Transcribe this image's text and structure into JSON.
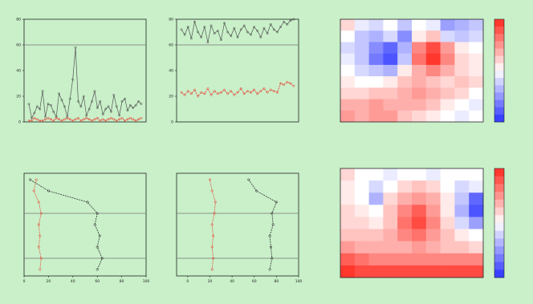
{
  "chart_data": [
    {
      "type": "line",
      "title": "",
      "xlabel": "",
      "ylabel": "",
      "ylim": [
        0,
        80
      ],
      "yticks": [
        0,
        20,
        40,
        60,
        80
      ],
      "hline": 60,
      "x_tick_labels": [],
      "legend_position": "right",
      "series": [
        {
          "name": "",
          "color": "#555555",
          "values": [
            14,
            3,
            7,
            12,
            10,
            24,
            4,
            14,
            13,
            8,
            4,
            22,
            17,
            12,
            4,
            18,
            33,
            58,
            16,
            12,
            20,
            5,
            10,
            16,
            24,
            11,
            16,
            6,
            10,
            12,
            8,
            21,
            12,
            5,
            16,
            18,
            9,
            13,
            11,
            13,
            16,
            14
          ]
        },
        {
          "name": "",
          "color": "#e84a3a",
          "values": [
            1,
            1,
            3,
            2,
            1,
            1,
            2,
            3,
            2,
            1,
            3,
            2,
            1,
            2,
            3,
            2,
            1,
            2,
            3,
            1,
            2,
            3,
            2,
            1,
            2,
            3,
            1,
            2,
            1,
            2,
            3,
            2,
            1,
            2,
            3,
            1,
            2,
            3,
            2,
            1,
            2,
            3
          ]
        }
      ]
    },
    {
      "type": "line",
      "title": "",
      "xlabel": "",
      "ylabel": "",
      "ylim": [
        0,
        80
      ],
      "yticks": [
        0,
        20,
        40,
        60,
        80
      ],
      "hline": 60,
      "x_tick_labels": [],
      "series": [
        {
          "name": "",
          "color": "#555555",
          "values": [
            72,
            68,
            74,
            65,
            78,
            70,
            66,
            74,
            62,
            75,
            69,
            71,
            64,
            77,
            70,
            67,
            73,
            66,
            72,
            75,
            70,
            68,
            74,
            71,
            66,
            73,
            69,
            76,
            72,
            70,
            74,
            78,
            76,
            79,
            80
          ]
        },
        {
          "name": "",
          "color": "#e84a3a",
          "values": [
            23,
            21,
            24,
            22,
            25,
            20,
            23,
            22,
            26,
            21,
            24,
            22,
            23,
            25,
            22,
            24,
            21,
            23,
            26,
            22,
            24,
            23,
            25,
            22,
            24,
            26,
            23,
            25,
            24,
            23,
            30,
            29,
            31,
            30,
            28
          ]
        }
      ]
    },
    {
      "type": "line",
      "title": "",
      "xlabel": "",
      "ylabel": "",
      "xlim": [
        0,
        100
      ],
      "xticks": [
        0,
        20,
        40,
        60,
        80,
        100
      ],
      "y_tick_labels": [],
      "hlines": [
        3,
        7
      ],
      "legend_position": "top",
      "series": [
        {
          "name": "",
          "color": "#333333",
          "x": [
            5,
            20,
            52,
            60,
            58,
            62,
            60,
            64,
            60
          ],
          "y_index": [
            0,
            1,
            2,
            3,
            4,
            5,
            6,
            7,
            8
          ]
        },
        {
          "name": "",
          "color": "#e84a3a",
          "x": [
            10,
            8,
            12,
            14,
            12,
            13,
            12,
            14,
            13
          ],
          "y_index": [
            0,
            1,
            2,
            3,
            4,
            5,
            6,
            7,
            8
          ]
        }
      ]
    },
    {
      "type": "line",
      "title": "",
      "xlabel": "",
      "ylabel": "",
      "xlim": [
        -10,
        100
      ],
      "xticks": [
        0,
        20,
        40,
        60,
        80,
        100
      ],
      "y_tick_labels": [],
      "hlines": [
        3,
        7
      ],
      "legend_position": "top",
      "series": [
        {
          "name": "",
          "color": "#333333",
          "x": [
            55,
            62,
            80,
            76,
            77,
            74,
            75,
            76,
            74
          ],
          "y_index": [
            0,
            1,
            2,
            3,
            4,
            5,
            6,
            7,
            8
          ]
        },
        {
          "name": "",
          "color": "#e84a3a",
          "x": [
            20,
            22,
            25,
            24,
            22,
            23,
            22,
            23,
            22
          ],
          "y_index": [
            0,
            1,
            2,
            3,
            4,
            5,
            6,
            7,
            8
          ]
        }
      ]
    },
    {
      "type": "heatmap",
      "title": "",
      "xlabel": "",
      "ylabel": "",
      "x_ticks": [],
      "colorbar_ticks": [],
      "rows": [
        [
          0.2,
          -0.1,
          -0.2,
          0.0,
          -0.3,
          0.0,
          -0.1,
          -0.5,
          -0.4,
          -0.3
        ],
        [
          0.0,
          -0.3,
          -0.4,
          -0.2,
          -0.6,
          0.1,
          0.3,
          -0.2,
          -0.3,
          -0.2
        ],
        [
          -0.2,
          -0.3,
          -0.6,
          -0.8,
          -0.4,
          0.6,
          0.9,
          0.5,
          0.1,
          0.0
        ],
        [
          -0.1,
          -0.3,
          -0.7,
          -0.9,
          -0.3,
          0.7,
          1.0,
          0.6,
          0.2,
          0.1
        ],
        [
          0.0,
          -0.2,
          -0.3,
          -0.4,
          0.1,
          0.4,
          0.6,
          0.4,
          0.2,
          0.1
        ],
        [
          0.1,
          0.0,
          0.0,
          0.1,
          0.3,
          0.4,
          0.3,
          0.2,
          0.3,
          0.2
        ],
        [
          0.2,
          0.2,
          0.3,
          0.3,
          0.4,
          0.5,
          0.4,
          0.3,
          0.2,
          0.0
        ],
        [
          0.4,
          0.4,
          0.5,
          0.4,
          0.4,
          0.4,
          0.3,
          0.1,
          0.0,
          -0.1
        ],
        [
          0.5,
          0.4,
          0.5,
          0.5,
          0.3,
          0.2,
          0.1,
          0.0,
          -0.1,
          0.0
        ]
      ]
    },
    {
      "type": "heatmap",
      "title": "",
      "xlabel": "",
      "ylabel": "",
      "x_ticks": [],
      "colorbar_ticks": [],
      "rows": [
        [
          0.2,
          0.0,
          0.0,
          -0.1,
          0.0,
          0.0,
          -0.1,
          0.0,
          0.0,
          0.0
        ],
        [
          0.1,
          0.0,
          -0.2,
          0.0,
          0.2,
          0.3,
          0.2,
          0.0,
          -0.2,
          -0.1
        ],
        [
          0.1,
          0.0,
          -0.4,
          0.2,
          0.4,
          0.5,
          0.4,
          0.1,
          -0.3,
          -0.8
        ],
        [
          0.2,
          0.1,
          0.0,
          0.3,
          0.6,
          0.8,
          0.5,
          0.1,
          -0.4,
          -0.9
        ],
        [
          0.2,
          0.2,
          0.1,
          0.3,
          0.7,
          0.9,
          0.6,
          0.2,
          -0.2,
          -0.5
        ],
        [
          0.3,
          0.3,
          0.3,
          0.4,
          0.6,
          0.7,
          0.5,
          0.3,
          0.1,
          0.0
        ],
        [
          0.5,
          0.4,
          0.4,
          0.4,
          0.4,
          0.5,
          0.4,
          0.3,
          0.3,
          0.2
        ],
        [
          0.8,
          0.7,
          0.6,
          0.6,
          0.6,
          0.6,
          0.6,
          0.6,
          0.6,
          0.6
        ],
        [
          1.0,
          0.9,
          0.9,
          0.9,
          0.9,
          0.9,
          0.9,
          0.9,
          0.9,
          0.9
        ]
      ]
    }
  ]
}
